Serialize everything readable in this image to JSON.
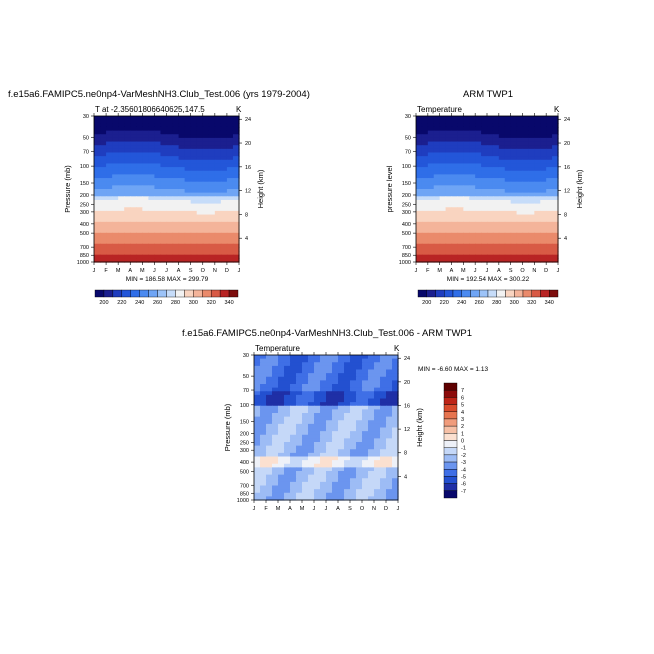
{
  "chart_data": [
    {
      "type": "heatmap",
      "title": "f.e15a6.FAMIPC5.ne0np4-VarMeshNH3.Club_Test.006 (yrs 1979-2004)",
      "left_label": "T at -2.35601806640625,147.5",
      "right_label": "K",
      "ylabel": "Pressure (mb)",
      "ylabel_right": "Height (km)",
      "x_ticks": [
        "J",
        "F",
        "M",
        "A",
        "M",
        "J",
        "J",
        "A",
        "S",
        "O",
        "N",
        "D",
        "J"
      ],
      "y_ticks": [
        "30",
        "50",
        "70",
        "100",
        "150",
        "200",
        "250",
        "300",
        "400",
        "500",
        "700",
        "850",
        "1000"
      ],
      "y_ticks_right": [
        "24",
        "20",
        "16",
        "12",
        "8",
        "4"
      ],
      "stats": "MIN = 186.58 MAX = 299.79",
      "colorbar_labels": [
        "200",
        "220",
        "240",
        "260",
        "280",
        "300",
        "320",
        "340"
      ],
      "levels": [
        200,
        210,
        220,
        230,
        240,
        250,
        260,
        270,
        280,
        290,
        300,
        310,
        320,
        330,
        340
      ],
      "field": "absolute"
    },
    {
      "type": "heatmap",
      "title": "ARM TWP1",
      "left_label": "Temperature",
      "right_label": "K",
      "ylabel": "pressure level",
      "ylabel_right": "Height (km)",
      "x_ticks": [
        "J",
        "F",
        "M",
        "A",
        "M",
        "J",
        "J",
        "A",
        "S",
        "O",
        "N",
        "D",
        "J"
      ],
      "y_ticks": [
        "30",
        "50",
        "70",
        "100",
        "150",
        "200",
        "250",
        "300",
        "400",
        "500",
        "700",
        "850",
        "1000"
      ],
      "y_ticks_right": [
        "24",
        "20",
        "16",
        "12",
        "8",
        "4"
      ],
      "stats": "MIN = 192.54 MAX = 300.22",
      "colorbar_labels": [
        "200",
        "220",
        "240",
        "260",
        "280",
        "300",
        "320",
        "340"
      ],
      "levels": [
        200,
        210,
        220,
        230,
        240,
        250,
        260,
        270,
        280,
        290,
        300,
        310,
        320,
        330,
        340
      ],
      "field": "absolute"
    },
    {
      "type": "heatmap",
      "title": "f.e15a6.FAMIPC5.ne0np4-VarMeshNH3.Club_Test.006 - ARM TWP1",
      "left_label": "Temperature",
      "right_label": "K",
      "ylabel": "Pressure (mb)",
      "ylabel_right": "Height (km)",
      "x_ticks": [
        "J",
        "F",
        "M",
        "A",
        "M",
        "J",
        "J",
        "A",
        "S",
        "O",
        "N",
        "D",
        "J"
      ],
      "y_ticks": [
        "30",
        "50",
        "70",
        "100",
        "150",
        "200",
        "250",
        "300",
        "400",
        "500",
        "700",
        "850",
        "1000"
      ],
      "y_ticks_right": [
        "24",
        "20",
        "16",
        "12",
        "8",
        "4"
      ],
      "stats": "MIN = -6.60 MAX =  1.13",
      "colorbar_labels": [
        "7",
        "6",
        "5",
        "4",
        "3",
        "2",
        "1",
        "0",
        "-1",
        "-2",
        "-3",
        "-4",
        "-5",
        "-6",
        "-7"
      ],
      "levels": [
        -7,
        -6,
        -5,
        -4,
        -3,
        -2,
        -1,
        0,
        1,
        2,
        3,
        4,
        5,
        6,
        7
      ],
      "field": "difference"
    }
  ],
  "colors": {
    "absolute": [
      "#08086b",
      "#1b1f8f",
      "#1f3dbf",
      "#2356d9",
      "#2f6ee8",
      "#4b8af0",
      "#6fa5f5",
      "#9cc3f8",
      "#c6dcf9",
      "#f2f2f2",
      "#f9d4c0",
      "#f4b49a",
      "#ea8a6b",
      "#d85a45",
      "#b82424",
      "#7d0d0d"
    ],
    "difference": [
      "#08086b",
      "#1f2fa6",
      "#2350d0",
      "#3f6fe6",
      "#6b95ef",
      "#9dbcf5",
      "#c5d8f8",
      "#eef1f8",
      "#fbe0d0",
      "#f6c0a6",
      "#f09c7c",
      "#e6744f",
      "#d84b2c",
      "#bd2417",
      "#8c0b0b",
      "#5e0000"
    ]
  }
}
